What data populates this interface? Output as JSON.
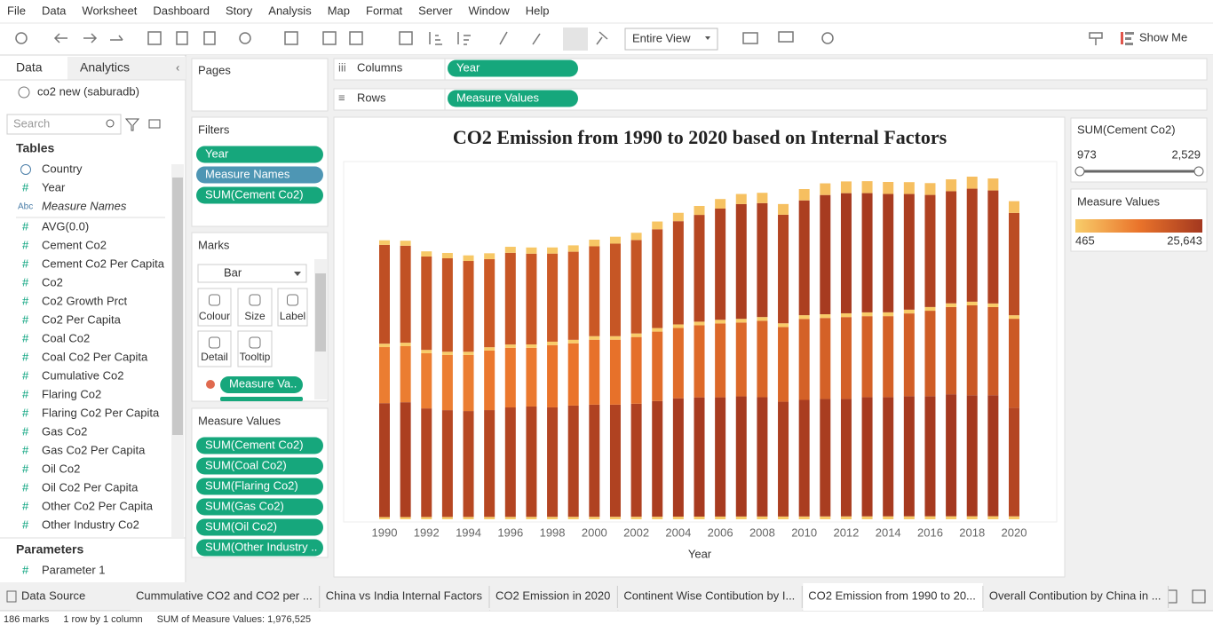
{
  "ui": {
    "menu": [
      "File",
      "Data",
      "Worksheet",
      "Dashboard",
      "Story",
      "Analysis",
      "Map",
      "Format",
      "Server",
      "Window",
      "Help"
    ],
    "toolbar": {
      "view": "Entire View",
      "show_me": "Show Me"
    },
    "data_pane": {
      "tabs": [
        "Data",
        "Analytics"
      ],
      "source": "co2 new (saburadb)",
      "search": "Search",
      "tables_title": "Tables",
      "dimensions": [
        {
          "name": "Country"
        },
        {
          "icon": "#",
          "name": "Year"
        },
        {
          "icon": "Abc",
          "name": "Measure Names"
        }
      ],
      "measures": [
        {
          "icon": "#",
          "name": "AVG(0.0)"
        },
        {
          "icon": "#",
          "name": "Cement Co2"
        },
        {
          "icon": "#",
          "name": "Cement Co2 Per Capita"
        },
        {
          "icon": "#",
          "name": "Co2"
        },
        {
          "icon": "#",
          "name": "Co2 Growth Prct"
        },
        {
          "icon": "#",
          "name": "Co2 Per Capita"
        },
        {
          "icon": "#",
          "name": "Coal Co2"
        },
        {
          "icon": "#",
          "name": "Coal Co2 Per Capita"
        },
        {
          "icon": "#",
          "name": "Cumulative Co2"
        },
        {
          "icon": "#",
          "name": "Flaring Co2"
        },
        {
          "icon": "#",
          "name": "Flaring Co2 Per Capita"
        },
        {
          "icon": "#",
          "name": "Gas Co2"
        },
        {
          "icon": "#",
          "name": "Gas Co2 Per Capita"
        },
        {
          "icon": "#",
          "name": "Oil Co2"
        },
        {
          "icon": "#",
          "name": "Oil Co2 Per Capita"
        },
        {
          "icon": "#",
          "name": "Other Co2 Per Capita"
        },
        {
          "icon": "#",
          "name": "Other Industry Co2"
        }
      ],
      "parameters_title": "Parameters",
      "parameters": [
        {
          "icon": "#",
          "name": "Parameter 1"
        }
      ]
    },
    "pages": "Pages",
    "filters": {
      "title": "Filters",
      "pills": [
        "Year",
        "Measure Names",
        "SUM(Cement Co2)"
      ]
    },
    "marks": {
      "title": "Marks",
      "mark_type": "Bar",
      "buttons": [
        "Colour",
        "Size",
        "Label",
        "Detail",
        "Tooltip"
      ],
      "pills": [
        "Measure Va.."
      ]
    },
    "measure_values_card": "Measure Values",
    "columns": {
      "label": "Columns",
      "pill": "Year"
    },
    "rows": {
      "label": "Rows",
      "pill": "Measure Values"
    },
    "cement_filter": {
      "title": "SUM(Cement Co2)",
      "min": {
        "value": 973,
        "label": "973"
      },
      "max": {
        "value": 2529,
        "label": "2,529"
      }
    },
    "color_legend": {
      "title": "Measure Values",
      "min": {
        "value": 465,
        "label": "465"
      },
      "max": {
        "value": 25643,
        "label": "25,643"
      },
      "colors": [
        "#f8cd6a",
        "#ea742b",
        "#a4381f"
      ]
    },
    "data_source_tab": "Data Source",
    "sheets": [
      "Cummulative CO2 and CO2 per ...",
      "China vs India Internal Factors",
      "CO2 Emission in 2020",
      "Continent Wise Contibution by I...",
      "CO2 Emission from 1990 to 20...",
      "Overall Contibution by China in ..."
    ],
    "active_sheet": 4,
    "status": [
      "186 marks",
      "1 row by 1 column",
      "SUM of Measure Values: 1,976,525"
    ]
  },
  "chart_data": {
    "type": "bar",
    "stacked": true,
    "title": "CO2 Emission from 1990 to 2020 based on Internal Factors",
    "x_label": "Year",
    "categories": [
      1990,
      null,
      1992,
      null,
      1994,
      null,
      1996,
      null,
      1998,
      null,
      2000,
      null,
      2002,
      null,
      2004,
      null,
      2006,
      null,
      2008,
      null,
      2010,
      null,
      2012,
      null,
      2014,
      null,
      2016,
      null,
      2018,
      null,
      2020
    ],
    "series": [
      {
        "name": "SUM(Cement Co2)",
        "values": [
          973,
          1050,
          1080,
          1120,
          1180,
          1230,
          1270,
          1300,
          1290,
          1340,
          1400,
          1450,
          1520,
          1630,
          1760,
          1880,
          2010,
          2120,
          2170,
          2250,
          2380,
          2450,
          2470,
          2510,
          2520,
          2490,
          2480,
          2500,
          2529,
          2520,
          2470
        ]
      },
      {
        "name": "SUM(Coal Co2)",
        "values": [
          20757,
          20383,
          19635,
          19635,
          19074,
          18513,
          19261,
          19074,
          18513,
          18513,
          18887,
          19448,
          19635,
          20757,
          21692,
          22440,
          23375,
          24123,
          23936,
          22814,
          24123,
          25058,
          25245,
          25058,
          24871,
          24310,
          23562,
          23562,
          23749,
          23749,
          21505
        ]
      },
      {
        "name": "SUM(Flaring Co2)",
        "values": [
          720,
          730,
          700,
          690,
          680,
          690,
          700,
          710,
          720,
          730,
          740,
          740,
          745,
          750,
          755,
          760,
          765,
          770,
          775,
          770,
          780,
          785,
          790,
          795,
          800,
          790,
          780,
          775,
          770,
          765,
          740
        ]
      },
      {
        "name": "SUM(Gas Co2)",
        "values": [
          11781,
          11781,
          11594,
          11594,
          11781,
          12529,
          12529,
          12342,
          13090,
          13090,
          13651,
          13651,
          14025,
          14586,
          14773,
          15147,
          15521,
          15521,
          16082,
          15708,
          17017,
          17017,
          17204,
          17017,
          17017,
          17391,
          17952,
          18326,
          18887,
          18513,
          18700
        ]
      },
      {
        "name": "SUM(Oil Co2)",
        "values": [
          23936,
          24123,
          22814,
          22440,
          22253,
          22440,
          23001,
          23188,
          23001,
          23375,
          23562,
          23562,
          23749,
          24310,
          24871,
          25058,
          25058,
          25245,
          25058,
          24123,
          24497,
          24684,
          24684,
          25058,
          25058,
          25245,
          25245,
          25643,
          25432,
          25432,
          22814
        ]
      },
      {
        "name": "SUM(Other Industry ..",
        "values": [
          465,
          470,
          480,
          485,
          490,
          495,
          500,
          505,
          510,
          515,
          520,
          525,
          530,
          540,
          550,
          560,
          570,
          580,
          585,
          580,
          590,
          600,
          605,
          610,
          615,
          620,
          625,
          630,
          635,
          640,
          620
        ]
      }
    ]
  }
}
